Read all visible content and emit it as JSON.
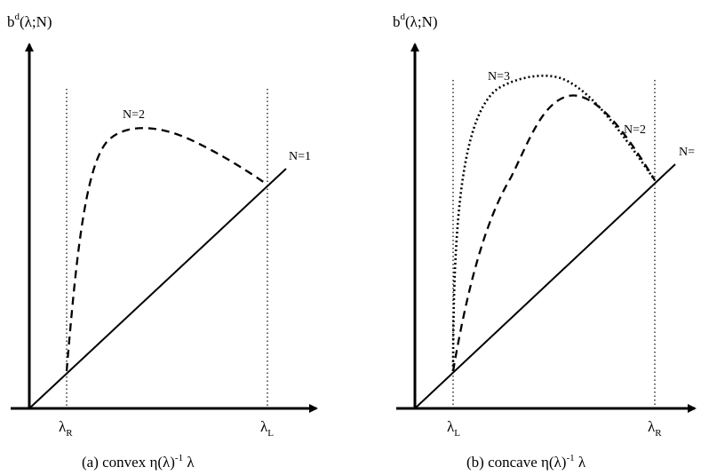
{
  "panels": [
    {
      "id": "a",
      "y_axis_label": {
        "base": "b",
        "sup": "d",
        "rest": "(λ;N)"
      },
      "x_ticks": [
        {
          "base": "λ",
          "sub": "R"
        },
        {
          "base": "λ",
          "sub": "L"
        }
      ],
      "curve_labels": [
        "N=2",
        "N=1"
      ],
      "caption": {
        "prefix": "(a)  convex η(λ)",
        "sup": "-1",
        "suffix": " λ"
      }
    },
    {
      "id": "b",
      "y_axis_label": {
        "base": "b",
        "sup": "d",
        "rest": "(λ;N)"
      },
      "x_ticks": [
        {
          "base": "λ",
          "sub": "L"
        },
        {
          "base": "λ",
          "sub": "R"
        }
      ],
      "curve_labels": [
        "N=3",
        "N=2",
        "N="
      ],
      "caption": {
        "prefix": "(b)  concave η(λ)",
        "sup": "-1",
        "suffix": " λ"
      }
    }
  ],
  "line_styles": {
    "N=1": "solid",
    "N=2": "dashed",
    "N=3": "dotted"
  }
}
